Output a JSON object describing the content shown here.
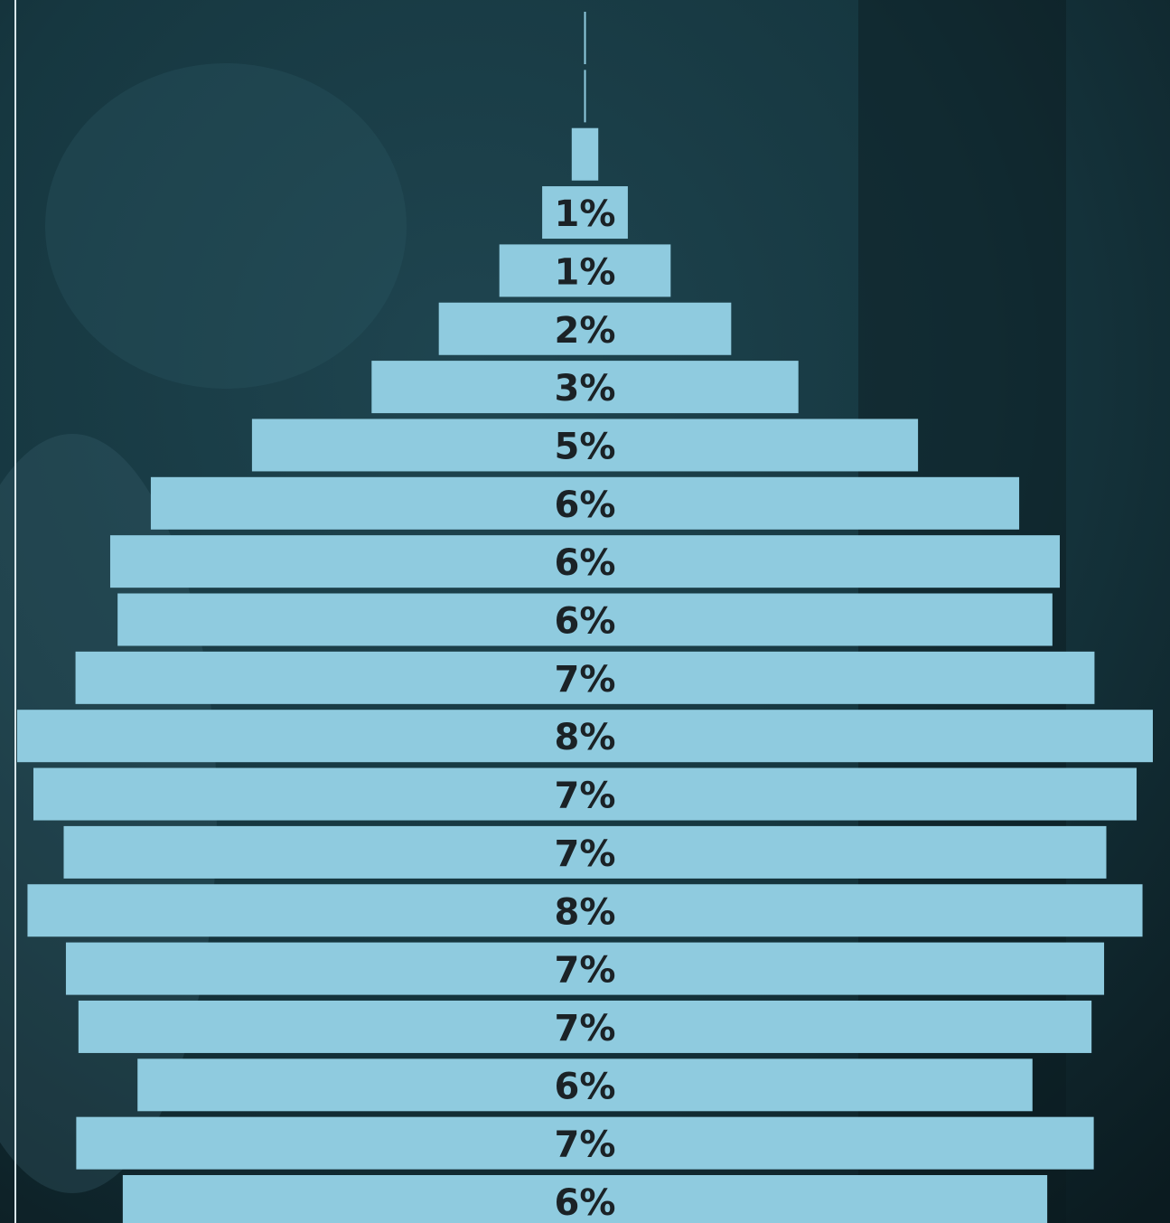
{
  "chart_data": {
    "type": "bar",
    "orientation": "horizontal-centered",
    "color": "#8fcbdf",
    "values": [
      0.01,
      0.01,
      0.18,
      0.58,
      1.16,
      1.98,
      2.89,
      4.51,
      5.88,
      6.43,
      6.33,
      6.9,
      7.69,
      7.47,
      7.06,
      7.55,
      7.03,
      6.86,
      6.06,
      6.89,
      6.26
    ],
    "value_labels": [
      null,
      null,
      null,
      "1%",
      "1%",
      "2%",
      "3%",
      "5%",
      "6%",
      "6%",
      "6%",
      "7%",
      "8%",
      "7%",
      "7%",
      "8%",
      "7%",
      "7%",
      "6%",
      "7%",
      "6%"
    ]
  }
}
